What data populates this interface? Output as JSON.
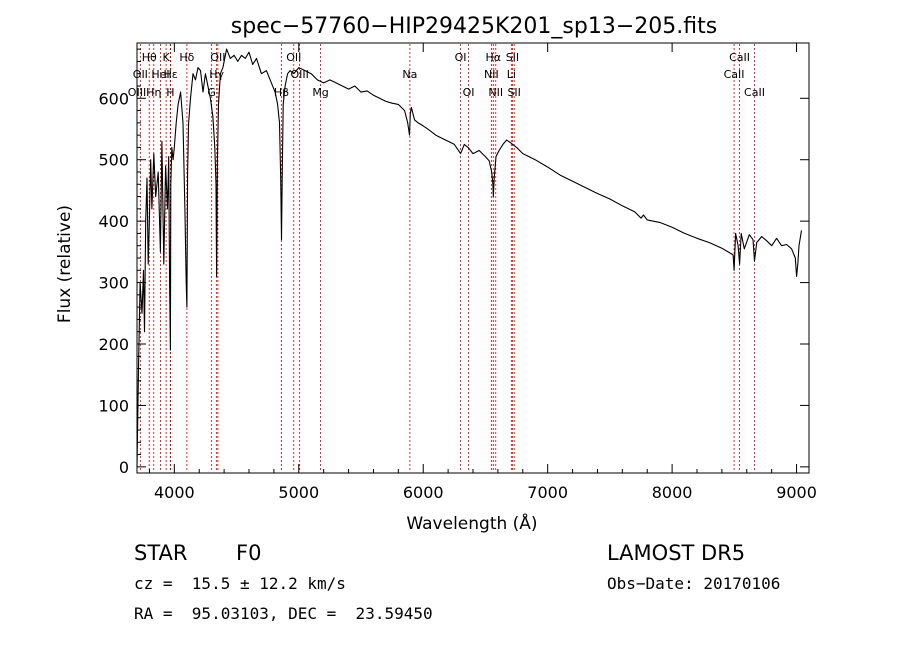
{
  "chart_data": {
    "type": "line",
    "title": "spec−57760−HIP29425K201_sp13−205.fits",
    "xlabel": "Wavelength (Å)",
    "ylabel": "Flux (relative)",
    "xlim": [
      3700,
      9100
    ],
    "ylim": [
      -10,
      690
    ],
    "x_ticks": [
      4000,
      5000,
      6000,
      7000,
      8000,
      9000
    ],
    "y_ticks": [
      0,
      100,
      200,
      300,
      400,
      500,
      600
    ],
    "line_color": "#000000",
    "marker_color": "#cc0000",
    "series": [
      {
        "x": [
          3700,
          3712,
          3725,
          3740,
          3752,
          3760,
          3770,
          3780,
          3790,
          3798,
          3810,
          3820,
          3835,
          3850,
          3870,
          3888,
          3900,
          3915,
          3930,
          3945,
          3955,
          3962,
          3968,
          3972,
          3980,
          3990,
          4000,
          4015,
          4030,
          4050,
          4070,
          4085,
          4095,
          4101,
          4107,
          4115,
          4130,
          4150,
          4170,
          4190,
          4210,
          4230,
          4250,
          4270,
          4290,
          4310,
          4325,
          4335,
          4340,
          4346,
          4355,
          4370,
          4390,
          4420,
          4450,
          4480,
          4510,
          4540,
          4570,
          4600,
          4630,
          4660,
          4700,
          4740,
          4780,
          4810,
          4830,
          4845,
          4855,
          4861,
          4867,
          4875,
          4890,
          4910,
          4930,
          4960,
          5000,
          5050,
          5100,
          5150,
          5200,
          5250,
          5300,
          5350,
          5400,
          5450,
          5500,
          5550,
          5600,
          5650,
          5700,
          5750,
          5800,
          5850,
          5875,
          5890,
          5896,
          5905,
          5930,
          5960,
          6000,
          6050,
          6100,
          6150,
          6200,
          6250,
          6300,
          6330,
          6360,
          6400,
          6450,
          6500,
          6530,
          6550,
          6560,
          6563,
          6570,
          6585,
          6610,
          6640,
          6670,
          6700,
          6750,
          6800,
          6900,
          7000,
          7100,
          7200,
          7300,
          7400,
          7500,
          7600,
          7700,
          7750,
          7770,
          7800,
          7900,
          8000,
          8100,
          8200,
          8300,
          8400,
          8450,
          8490,
          8498,
          8510,
          8530,
          8542,
          8555,
          8580,
          8620,
          8650,
          8662,
          8680,
          8720,
          8760,
          8800,
          8840,
          8880,
          8920,
          8960,
          8990,
          9000,
          9010,
          9020,
          9040
        ],
        "y": [
          0,
          160,
          300,
          250,
          320,
          220,
          400,
          470,
          330,
          390,
          500,
          420,
          510,
          440,
          480,
          350,
          530,
          330,
          490,
          420,
          505,
          300,
          190,
          460,
          520,
          500,
          520,
          560,
          590,
          610,
          560,
          420,
          300,
          260,
          480,
          560,
          600,
          640,
          630,
          650,
          645,
          610,
          640,
          620,
          600,
          570,
          520,
          460,
          310,
          500,
          590,
          640,
          650,
          680,
          665,
          670,
          660,
          670,
          665,
          675,
          655,
          665,
          640,
          645,
          625,
          610,
          590,
          560,
          470,
          370,
          470,
          590,
          620,
          640,
          645,
          640,
          650,
          645,
          640,
          630,
          625,
          630,
          625,
          620,
          615,
          620,
          610,
          612,
          605,
          600,
          595,
          592,
          590,
          580,
          560,
          540,
          575,
          585,
          565,
          560,
          555,
          548,
          540,
          535,
          530,
          525,
          510,
          525,
          520,
          510,
          515,
          505,
          498,
          480,
          460,
          440,
          470,
          505,
          515,
          525,
          532,
          528,
          520,
          510,
          500,
          488,
          475,
          465,
          455,
          445,
          436,
          425,
          415,
          405,
          410,
          402,
          398,
          390,
          380,
          372,
          365,
          356,
          350,
          345,
          320,
          380,
          360,
          330,
          380,
          355,
          378,
          370,
          335,
          365,
          375,
          368,
          360,
          372,
          360,
          362,
          355,
          340,
          310,
          330,
          360,
          385
        ]
      }
    ],
    "spectral_lines": [
      {
        "name": "Hθ",
        "x": 3798,
        "row": 1
      },
      {
        "name": "K",
        "x": 3934,
        "row": 1
      },
      {
        "name": "Hδ",
        "x": 4101,
        "row": 1
      },
      {
        "name": "OII",
        "x": 4350,
        "row": 1
      },
      {
        "name": "OII",
        "x": 4960,
        "row": 1
      },
      {
        "name": "OI",
        "x": 6300,
        "row": 1
      },
      {
        "name": "Hα",
        "x": 6563,
        "row": 1
      },
      {
        "name": "SII",
        "x": 6717,
        "row": 1
      },
      {
        "name": "CaII",
        "x": 8542,
        "row": 1
      },
      {
        "name": "OII",
        "x": 3727,
        "row": 2
      },
      {
        "name": "HeI",
        "x": 3889,
        "row": 2
      },
      {
        "name": "Hε",
        "x": 3970,
        "row": 2
      },
      {
        "name": "OIII",
        "x": 5007,
        "row": 2
      },
      {
        "name": "Na",
        "x": 5893,
        "row": 2
      },
      {
        "name": "NII",
        "x": 6548,
        "row": 2
      },
      {
        "name": "Li",
        "x": 6708,
        "row": 2
      },
      {
        "name": "CaII",
        "x": 8498,
        "row": 2
      },
      {
        "name": "OIII",
        "x": 3700,
        "row": 3
      },
      {
        "name": "Hη",
        "x": 3835,
        "row": 3
      },
      {
        "name": "H",
        "x": 3968,
        "row": 3
      },
      {
        "name": "G",
        "x": 4300,
        "row": 3
      },
      {
        "name": "Hβ",
        "x": 4861,
        "row": 3
      },
      {
        "name": "Mg",
        "x": 5175,
        "row": 3
      },
      {
        "name": "OI",
        "x": 6364,
        "row": 3
      },
      {
        "name": "NII",
        "x": 6583,
        "row": 3
      },
      {
        "name": "SII",
        "x": 6731,
        "row": 3
      },
      {
        "name": "CaII",
        "x": 8662,
        "row": 3
      },
      {
        "name": "Hγ",
        "x": 4340,
        "row": 2
      }
    ]
  },
  "info": {
    "object_class": "STAR",
    "subclass": "F0",
    "survey": "LAMOST DR5",
    "redshift": "cz =  15.5 ± 12.2 km/s",
    "obs_date": "Obs−Date: 20170106",
    "coords": "RA =  95.03103, DEC =  23.59450"
  }
}
